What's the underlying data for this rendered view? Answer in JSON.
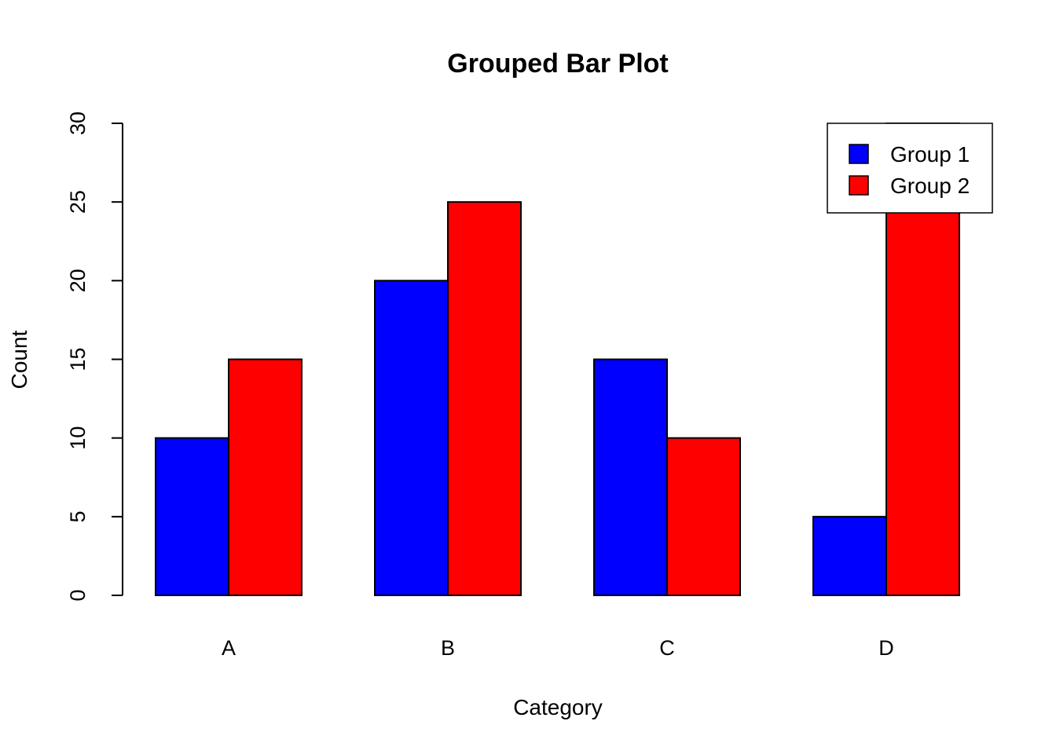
{
  "chart_data": {
    "type": "bar",
    "title": "Grouped Bar Plot",
    "xlabel": "Category",
    "ylabel": "Count",
    "categories": [
      "A",
      "B",
      "C",
      "D"
    ],
    "series": [
      {
        "name": "Group 1",
        "color": "#0000ff",
        "values": [
          10,
          20,
          15,
          5
        ]
      },
      {
        "name": "Group 2",
        "color": "#ff0000",
        "values": [
          15,
          25,
          10,
          30
        ]
      }
    ],
    "ylim": [
      0,
      30
    ],
    "yticks": [
      "0",
      "5",
      "10",
      "15",
      "20",
      "25",
      "30"
    ],
    "grid": false,
    "legend_position": "top-right"
  }
}
